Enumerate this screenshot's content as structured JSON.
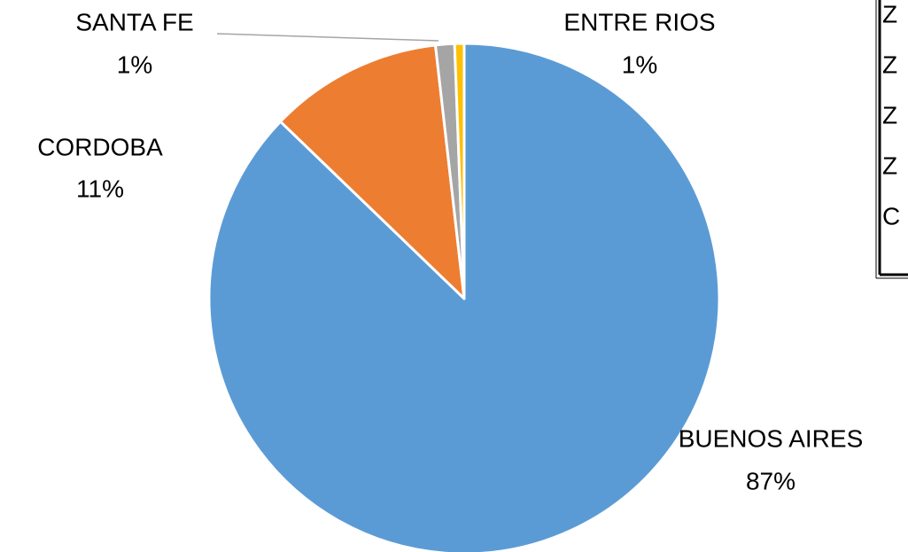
{
  "chart_data": {
    "type": "pie",
    "categories": [
      "BUENOS AIRES",
      "CORDOBA",
      "SANTA FE",
      "ENTRE RIOS"
    ],
    "values": [
      87.2,
      11.0,
      1.2,
      0.6
    ],
    "value_labels": [
      "87%",
      "11%",
      "1%",
      "1%"
    ],
    "colors": [
      "#5b9bd5",
      "#ed7d31",
      "#a5a5a5",
      "#ffc000"
    ]
  },
  "legend_box": {
    "entries": [
      "Z",
      "Z",
      "Z",
      "Z",
      "C"
    ]
  }
}
